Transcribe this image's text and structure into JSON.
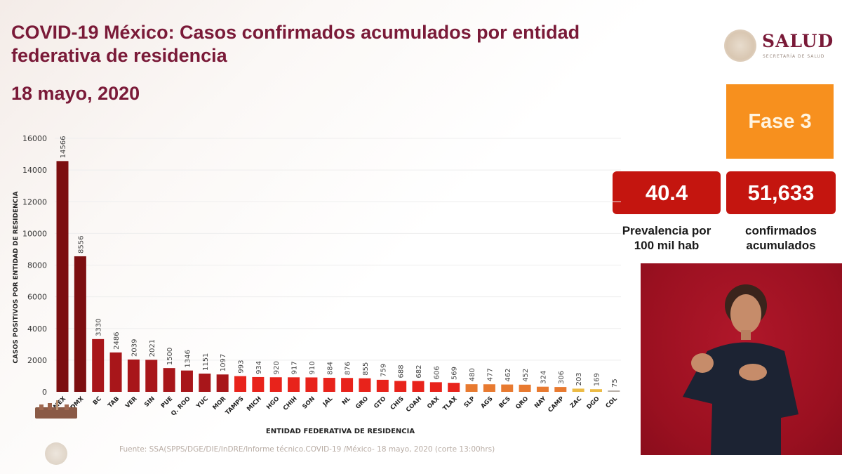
{
  "header": {
    "title": "COVID-19 México: Casos confirmados acumulados por entidad federativa de residencia",
    "date": "18 mayo, 2020"
  },
  "logo": {
    "name": "SALUD",
    "subtitle": "SECRETARÍA DE SALUD"
  },
  "phase": {
    "label": "Fase 3",
    "color": "#f7901e"
  },
  "kpis": [
    {
      "value": "40.4",
      "label_line1": "Prevalencia por",
      "label_line2": "100 mil hab"
    },
    {
      "value": "51,633",
      "label_line1": "confirmados",
      "label_line2": "acumulados"
    }
  ],
  "source": "Fuente: SSA(SPPS/DGE/DIE/InDRE/Informe técnico.COVID-19 /México- 18 mayo, 2020 (corte 13:00hrs)",
  "colors": {
    "title": "#7a1a38",
    "kpi": "#c4150f",
    "tier1": "#7c0e10",
    "tier2": "#a8161a",
    "tier3": "#e8231b",
    "tier4": "#e87a30",
    "tier5": "#ecbb45",
    "tier6": "#b8b0a8"
  },
  "chart_data": {
    "type": "bar",
    "title": "",
    "xlabel": "ENTIDAD FEDERATIVA DE RESIDENCIA",
    "ylabel": "CASOS POSITIVOS POR ENTIDAD DE RESIDENCIA",
    "ylim": [
      0,
      16000
    ],
    "yticks": [
      0,
      2000,
      4000,
      6000,
      8000,
      10000,
      12000,
      14000,
      16000
    ],
    "grid": true,
    "categories": [
      "MEX",
      "CDMX",
      "BC",
      "TAB",
      "VER",
      "SIN",
      "PUE",
      "Q. ROO",
      "YUC",
      "MOR",
      "TAMPS",
      "MICH",
      "HGO",
      "CHIH",
      "SON",
      "JAL",
      "NL",
      "GRO",
      "GTO",
      "CHIS",
      "COAH",
      "OAX",
      "TLAX",
      "SLP",
      "AGS",
      "BCS",
      "QRO",
      "NAY",
      "CAMP",
      "ZAC",
      "DGO",
      "COL"
    ],
    "values": [
      14566,
      8556,
      3330,
      2486,
      2039,
      2021,
      1500,
      1346,
      1151,
      1097,
      993,
      934,
      920,
      917,
      910,
      884,
      876,
      855,
      759,
      688,
      682,
      606,
      569,
      480,
      477,
      462,
      452,
      324,
      306,
      203,
      169,
      75
    ],
    "tiers": [
      1,
      1,
      2,
      2,
      2,
      2,
      2,
      2,
      2,
      2,
      3,
      3,
      3,
      3,
      3,
      3,
      3,
      3,
      3,
      3,
      3,
      3,
      3,
      4,
      4,
      4,
      4,
      4,
      4,
      5,
      5,
      6
    ]
  }
}
